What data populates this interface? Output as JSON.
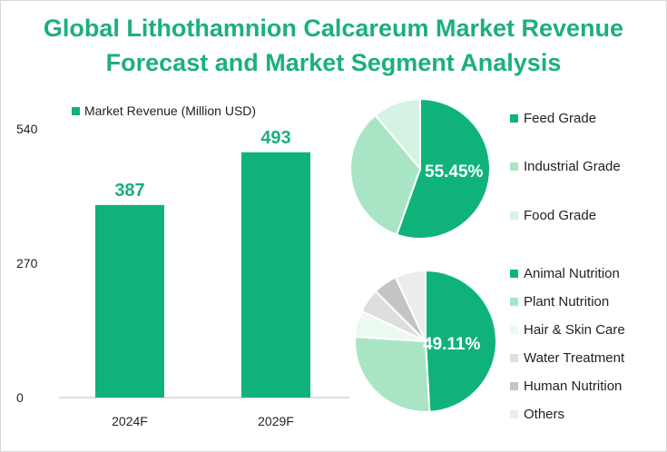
{
  "title_lines": [
    "Global Lithothamnion Calcareum Market Revenue",
    "Forecast and Market Segment Analysis"
  ],
  "chart_data": [
    {
      "type": "bar",
      "legend": "Market Revenue (Million USD)",
      "categories": [
        "2024F",
        "2029F"
      ],
      "series": [
        {
          "name": "Market Revenue (Million USD)",
          "values": [
            387,
            493
          ],
          "color": "#0fb37a"
        }
      ],
      "yticks": [
        0,
        270,
        540
      ],
      "ylim": [
        0,
        540
      ]
    },
    {
      "type": "pie",
      "labels": [
        "Feed Grade",
        "Industrial Grade",
        "Food Grade"
      ],
      "values": [
        55.45,
        33.45,
        11.1
      ],
      "colors": [
        "#0fb37a",
        "#a9e5c5",
        "#d4f3e2"
      ],
      "display_label": "55.45%"
    },
    {
      "type": "pie",
      "labels": [
        "Animal Nutrition",
        "Plant Nutrition",
        "Hair & Skin Care",
        "Water Treatment",
        "Human Nutrition",
        "Others"
      ],
      "values": [
        49.11,
        26.89,
        6.0,
        5.5,
        5.5,
        7.0
      ],
      "colors": [
        "#0fb37a",
        "#a9e5c5",
        "#ebf9f1",
        "#dedede",
        "#c4c4c4",
        "#ececec"
      ],
      "display_label": "49.11%"
    }
  ]
}
